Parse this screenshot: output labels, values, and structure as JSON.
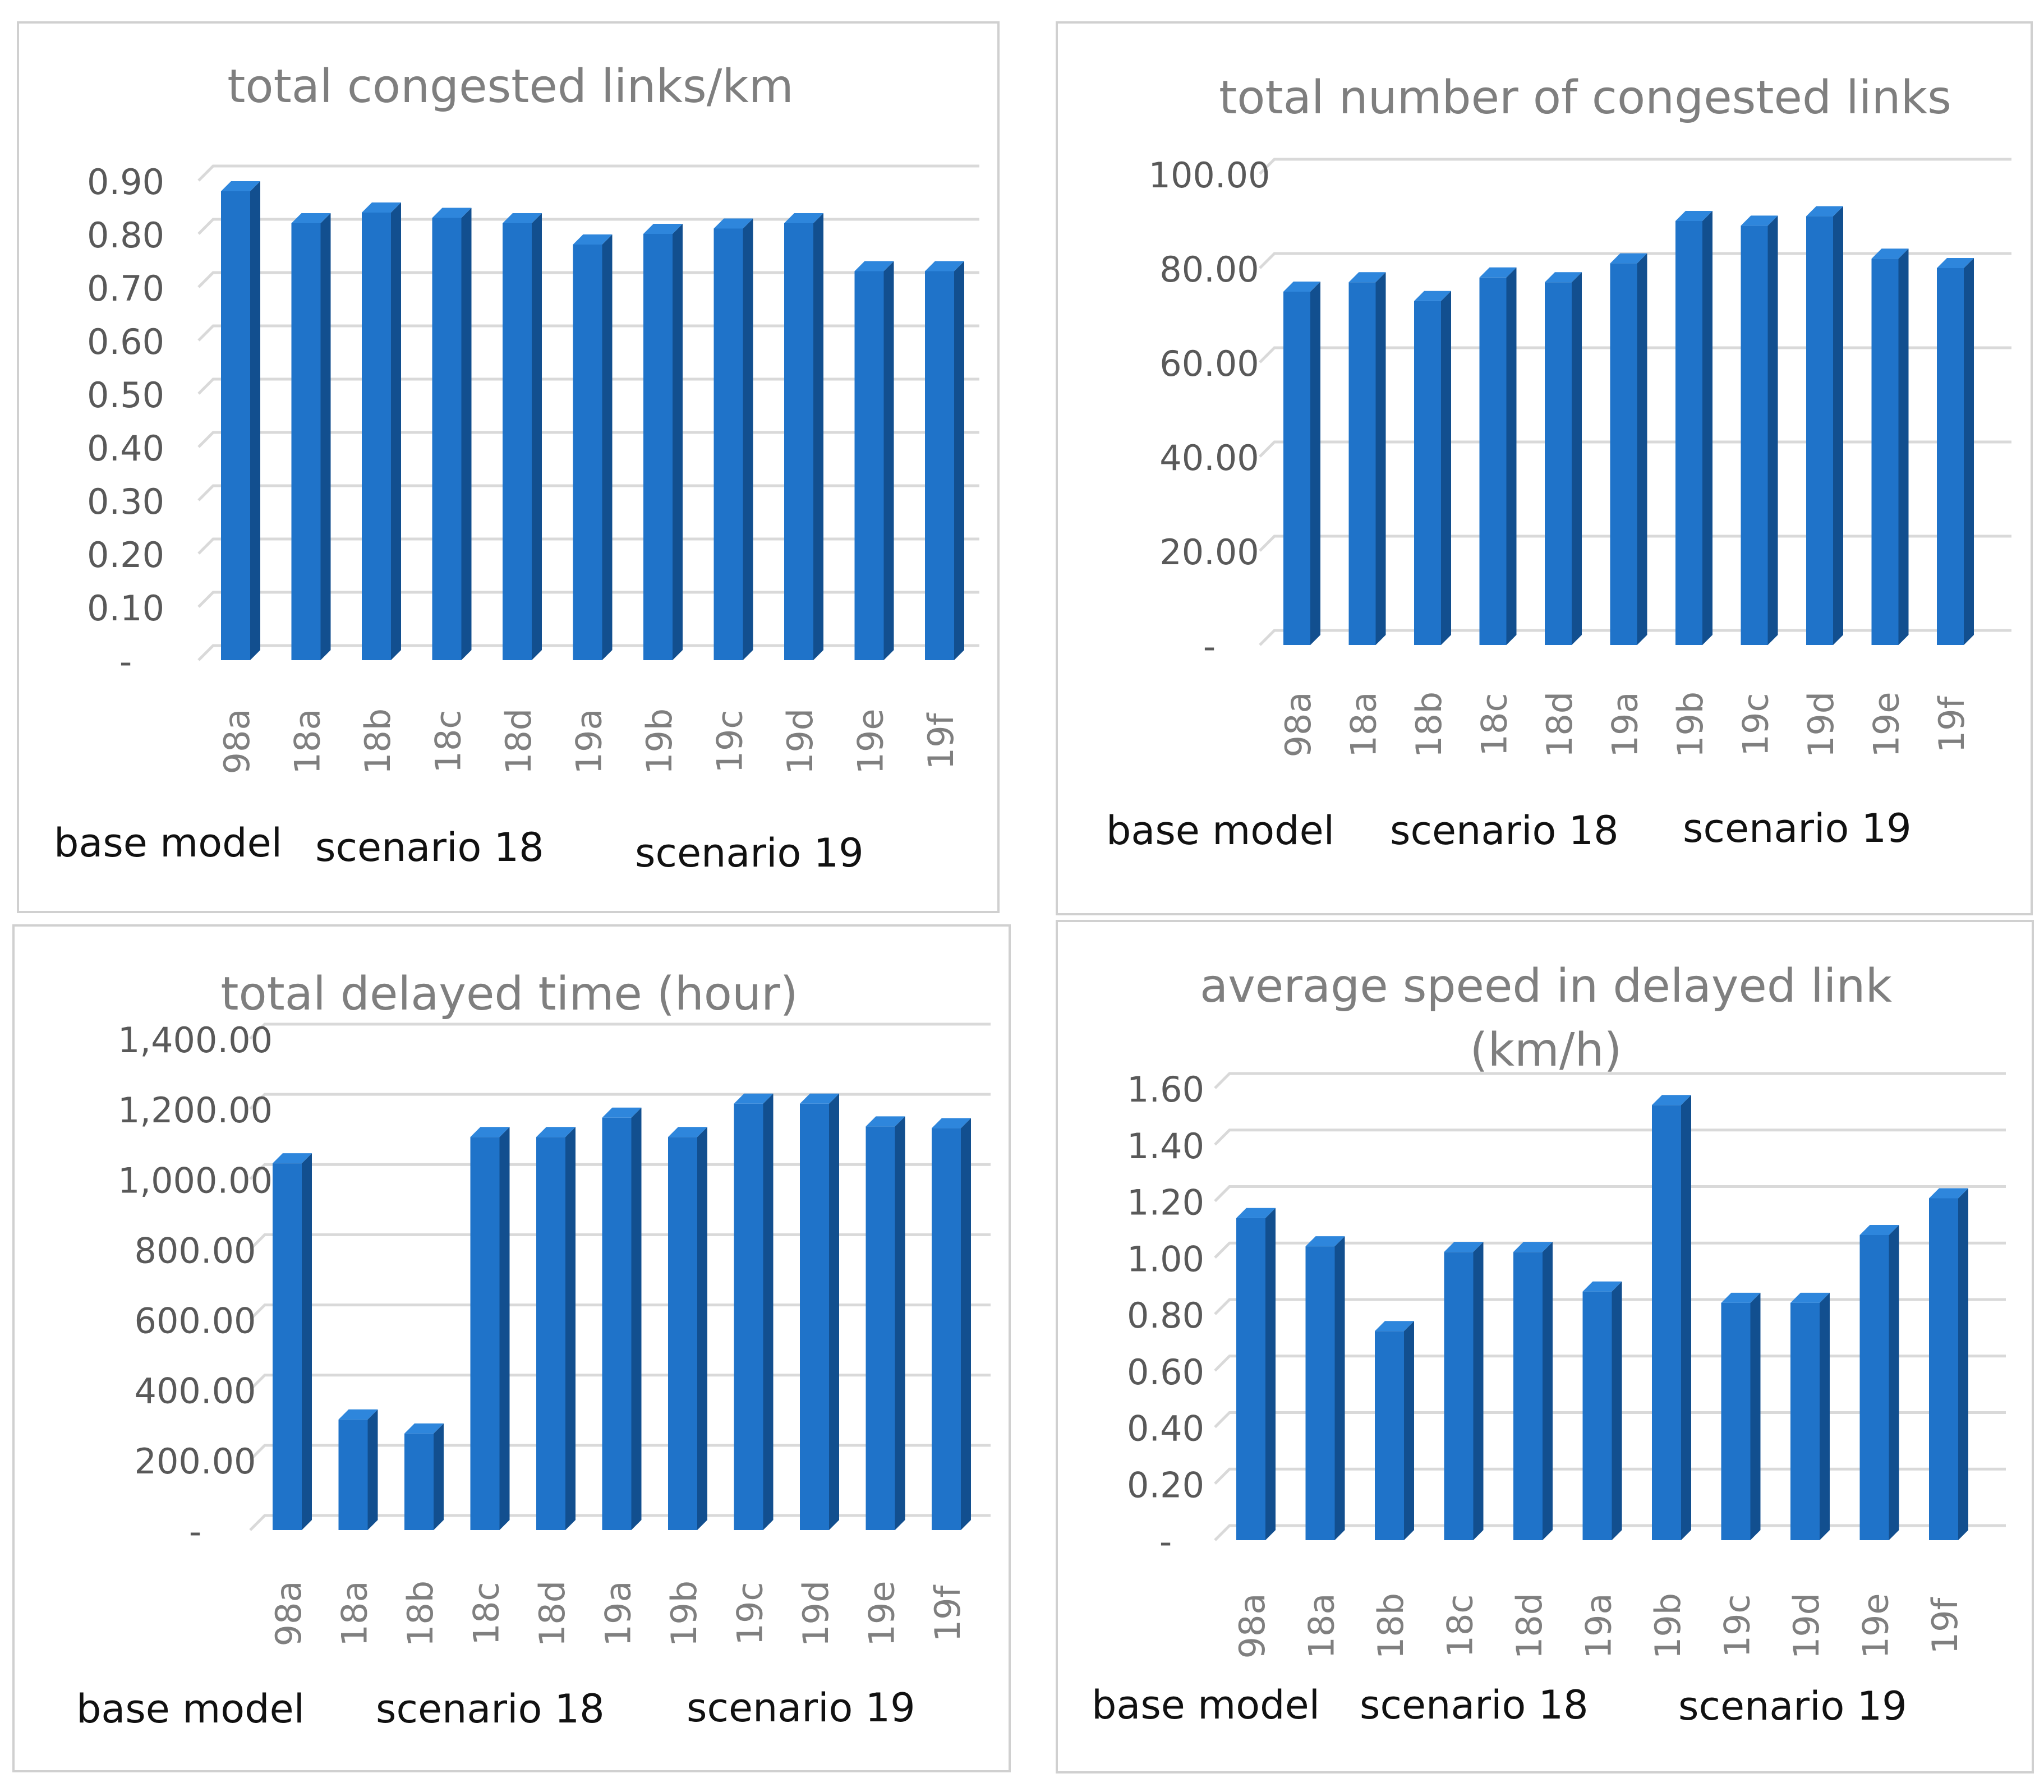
{
  "chart_data": [
    {
      "type": "bar",
      "title": "total congested links/km",
      "categories": [
        "98a",
        "18a",
        "18b",
        "18c",
        "18d",
        "19a",
        "19b",
        "19c",
        "19d",
        "19e",
        "19f"
      ],
      "values": [
        0.88,
        0.82,
        0.84,
        0.83,
        0.82,
        0.78,
        0.8,
        0.81,
        0.82,
        0.73,
        0.73
      ],
      "ylim": [
        0,
        0.9
      ],
      "yticks": [
        "-",
        "0.10",
        "0.20",
        "0.30",
        "0.40",
        "0.50",
        "0.60",
        "0.70",
        "0.80",
        "0.90"
      ],
      "group_labels": [
        "base model",
        "scenario 18",
        "scenario 19"
      ],
      "xlabel": "",
      "ylabel": "",
      "color": "#1F73C9"
    },
    {
      "type": "bar",
      "title": "total number of congested links",
      "categories": [
        "98a",
        "18a",
        "18b",
        "18c",
        "18d",
        "19a",
        "19b",
        "19c",
        "19d",
        "19e",
        "19f"
      ],
      "values": [
        75,
        77,
        73,
        78,
        77,
        81,
        90,
        89,
        91,
        82,
        80
      ],
      "ylim": [
        0,
        100
      ],
      "yticks": [
        "-",
        "20.00",
        "40.00",
        "60.00",
        "80.00",
        "100.00"
      ],
      "group_labels": [
        "base model",
        "scenario 18",
        "scenario 19"
      ],
      "xlabel": "",
      "ylabel": "",
      "color": "#1F73C9"
    },
    {
      "type": "bar",
      "title": "total delayed time (hour)",
      "categories": [
        "98a",
        "18a",
        "18b",
        "18c",
        "18d",
        "19a",
        "19b",
        "19c",
        "19d",
        "19e",
        "19f"
      ],
      "values": [
        1045,
        315,
        275,
        1120,
        1120,
        1175,
        1120,
        1215,
        1215,
        1150,
        1145
      ],
      "ylim": [
        0,
        1400
      ],
      "yticks": [
        "-",
        "200.00",
        "400.00",
        "600.00",
        "800.00",
        "1,000.00",
        "1,200.00",
        "1,400.00"
      ],
      "group_labels": [
        "base model",
        "scenario 18",
        "scenario 19"
      ],
      "xlabel": "",
      "ylabel": "",
      "color": "#1F73C9"
    },
    {
      "type": "bar",
      "title": "average speed in delayed link (km/h)",
      "title_lines": [
        "average speed in delayed link",
        "(km/h)"
      ],
      "categories": [
        "98a",
        "18a",
        "18b",
        "18c",
        "18d",
        "19a",
        "19b",
        "19c",
        "19d",
        "19e",
        "19f"
      ],
      "values": [
        1.14,
        1.04,
        0.74,
        1.02,
        1.02,
        0.88,
        1.54,
        0.84,
        0.84,
        1.08,
        1.21
      ],
      "ylim": [
        0,
        1.6
      ],
      "yticks": [
        "-",
        "0.20",
        "0.40",
        "0.60",
        "0.80",
        "1.00",
        "1.20",
        "1.40",
        "1.60"
      ],
      "group_labels": [
        "base model",
        "scenario 18",
        "scenario 19"
      ],
      "xlabel": "",
      "ylabel": "",
      "color": "#1F73C9"
    }
  ]
}
